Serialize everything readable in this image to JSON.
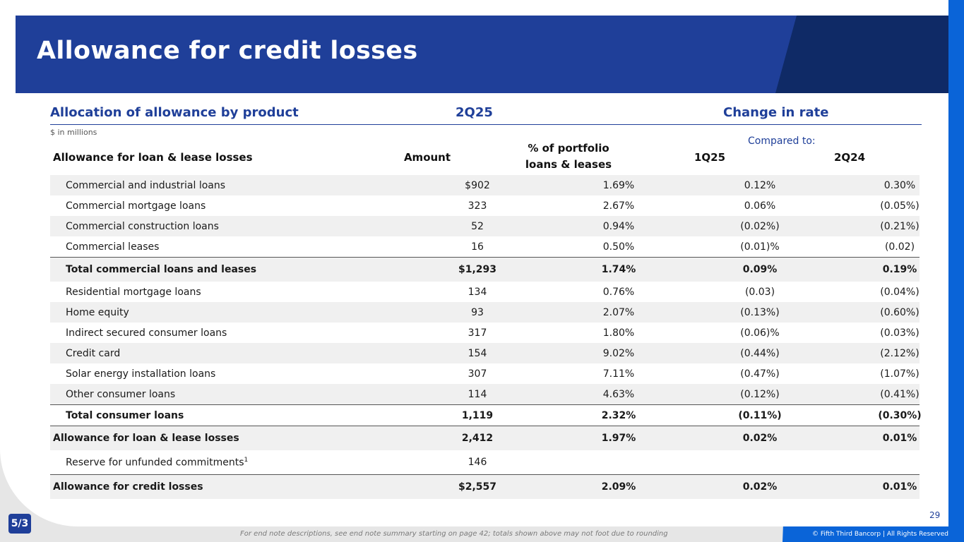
{
  "title": "Allowance for credit losses",
  "section": {
    "left": "Allocation of allowance by product",
    "mid": "2Q25",
    "right": "Change in rate"
  },
  "units": "$ in millions",
  "compared_to": "Compared to:",
  "columns": {
    "label": "Allowance for loan & lease losses",
    "amount": "Amount",
    "pct_line1": "% of portfolio",
    "pct_line2": "loans & leases",
    "q1": "1Q25",
    "q2": "2Q24"
  },
  "rows": [
    {
      "label": "Commercial and industrial loans",
      "amount": "$902",
      "pct": "1.69%",
      "q1": "0.12%",
      "q2": "0.30%"
    },
    {
      "label": "Commercial mortgage loans",
      "amount": "323",
      "pct": "2.67%",
      "q1": "0.06%",
      "q2": "(0.05%)"
    },
    {
      "label": "Commercial construction loans",
      "amount": "52",
      "pct": "0.94%",
      "q1": "(0.02%)",
      "q2": "(0.21%)"
    },
    {
      "label": "Commercial leases",
      "amount": "16",
      "pct": "0.50%",
      "q1": "(0.01)%",
      "q2": "(0.02)"
    },
    {
      "label": "Total commercial loans and leases",
      "amount": "$1,293",
      "pct": "1.74%",
      "q1": "0.09%",
      "q2": "0.19%"
    },
    {
      "label": "Residential mortgage loans",
      "amount": "134",
      "pct": "0.76%",
      "q1": "(0.03)",
      "q2": "(0.04%)"
    },
    {
      "label": "Home equity",
      "amount": "93",
      "pct": "2.07%",
      "q1": "(0.13%)",
      "q2": "(0.60%)"
    },
    {
      "label": "Indirect secured consumer loans",
      "amount": "317",
      "pct": "1.80%",
      "q1": "(0.06)%",
      "q2": "(0.03%)"
    },
    {
      "label": "Credit card",
      "amount": "154",
      "pct": "9.02%",
      "q1": "(0.44%)",
      "q2": "(2.12%)"
    },
    {
      "label": "Solar energy installation loans",
      "amount": "307",
      "pct": "7.11%",
      "q1": "(0.47%)",
      "q2": "(1.07%)"
    },
    {
      "label": "Other consumer loans",
      "amount": "114",
      "pct": "4.63%",
      "q1": "(0.12%)",
      "q2": "(0.41%)"
    },
    {
      "label": "Total consumer loans",
      "amount": "1,119",
      "pct": "2.32%",
      "q1": "(0.11%)",
      "q2": "(0.30%)"
    },
    {
      "label": "Allowance for loan & lease losses",
      "amount": "2,412",
      "pct": "1.97%",
      "q1": "0.02%",
      "q2": "0.01%"
    },
    {
      "label": "Reserve for unfunded commitments",
      "footnote_mark": "1",
      "amount": "146",
      "pct": "",
      "q1": "",
      "q2": ""
    },
    {
      "label": "Allowance for credit losses",
      "amount": "$2,557",
      "pct": "2.09%",
      "q1": "0.02%",
      "q2": "0.01%"
    }
  ],
  "page_number": "29",
  "footnote": "For end note descriptions, see end note summary starting on page 42; totals shown above may not foot due to rounding",
  "copyright": "© Fifth Third Bancorp | All Rights Reserved",
  "logo_text": "5/3",
  "colors": {
    "brand_blue": "#1f3f99",
    "navy": "#0f2a66",
    "accent_blue": "#0a64d8"
  }
}
